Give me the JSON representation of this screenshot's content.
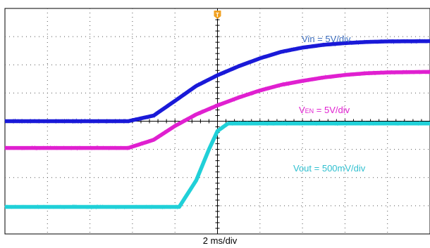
{
  "chart_data": {
    "type": "line",
    "title": "",
    "xlabel": "2 ms/div",
    "ylabel": "",
    "xlim": [
      -10,
      10
    ],
    "ylim": [
      -4,
      4
    ],
    "x_units": "ms",
    "y_units": "div",
    "divisions": {
      "x": 10,
      "y": 8
    },
    "grid": true,
    "trigger_marker": {
      "label": "T",
      "x": 0,
      "color": "#f0a020"
    },
    "background": "#ffffff",
    "series": [
      {
        "name": "Vin",
        "annotation": "Vin = 5V/div",
        "color": "#1a1ad8",
        "label_color": "#3d6fc0",
        "x": [
          -10,
          -4.2,
          -3.0,
          -2.0,
          -1.0,
          0.0,
          1.0,
          2.0,
          3.0,
          4.0,
          5.0,
          6.0,
          7.0,
          8.0,
          10.0
        ],
        "y": [
          0.0,
          0.0,
          0.2,
          0.72,
          1.25,
          1.63,
          1.95,
          2.23,
          2.46,
          2.61,
          2.71,
          2.77,
          2.81,
          2.83,
          2.84
        ]
      },
      {
        "name": "VEN",
        "annotation_main": "V",
        "annotation_sub": "EN",
        "annotation_suffix": " = 5V/div",
        "color": "#e020d0",
        "label_color": "#e020d0",
        "x": [
          -10,
          -4.2,
          -3.0,
          -2.0,
          -1.0,
          0.0,
          1.0,
          2.0,
          3.0,
          4.0,
          5.0,
          6.0,
          7.0,
          8.0,
          10.0
        ],
        "y": [
          -0.95,
          -0.95,
          -0.66,
          -0.17,
          0.24,
          0.56,
          0.84,
          1.09,
          1.29,
          1.43,
          1.55,
          1.64,
          1.7,
          1.73,
          1.75
        ]
      },
      {
        "name": "Vout",
        "annotation": "Vout = 500mV/div",
        "color": "#20d0d8",
        "label_color": "#30c0d0",
        "x": [
          -10,
          -1.8,
          -1.0,
          -0.4,
          0.0,
          0.5,
          2.0,
          10.0
        ],
        "y": [
          -3.04,
          -3.04,
          -2.1,
          -1.0,
          -0.35,
          -0.08,
          -0.08,
          -0.08
        ]
      }
    ]
  }
}
